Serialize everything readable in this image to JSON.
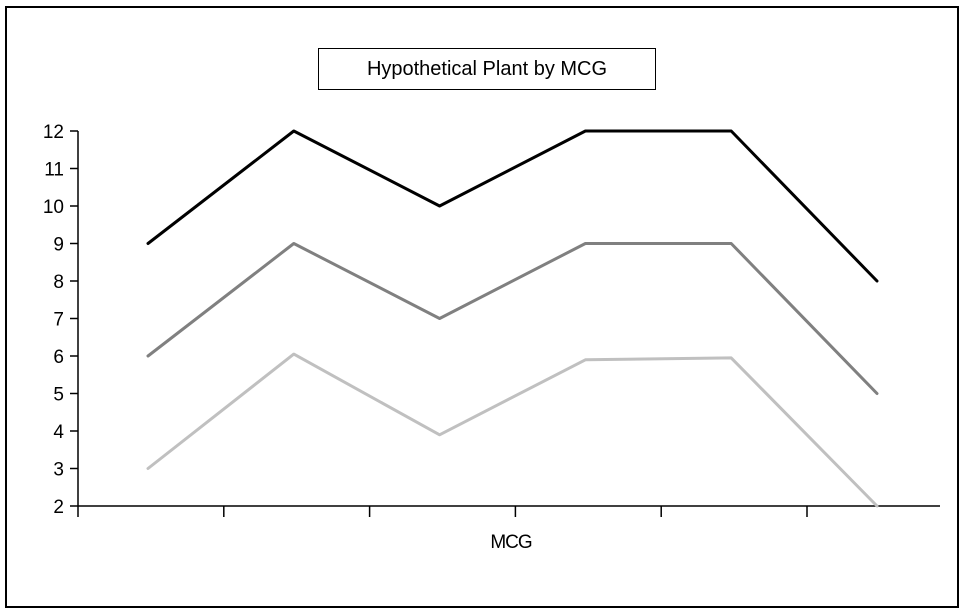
{
  "chart_data": {
    "type": "line",
    "title": "Hypothetical Plant by MCG",
    "xlabel": "MCG",
    "ylabel": "",
    "ylim": [
      2,
      12
    ],
    "yticks": [
      2,
      3,
      4,
      5,
      6,
      7,
      8,
      9,
      10,
      11,
      12
    ],
    "x": [
      1,
      2,
      3,
      4,
      5,
      6
    ],
    "grid": false,
    "legend": "none",
    "series": [
      {
        "color": "#000000",
        "values": [
          9,
          12,
          10,
          12,
          12,
          8
        ]
      },
      {
        "color": "#808080",
        "values": [
          6,
          9,
          7,
          9,
          9,
          5
        ]
      },
      {
        "color": "#c0c0c0",
        "values": [
          3,
          6.05,
          3.9,
          5.9,
          5.95,
          2
        ]
      }
    ]
  }
}
